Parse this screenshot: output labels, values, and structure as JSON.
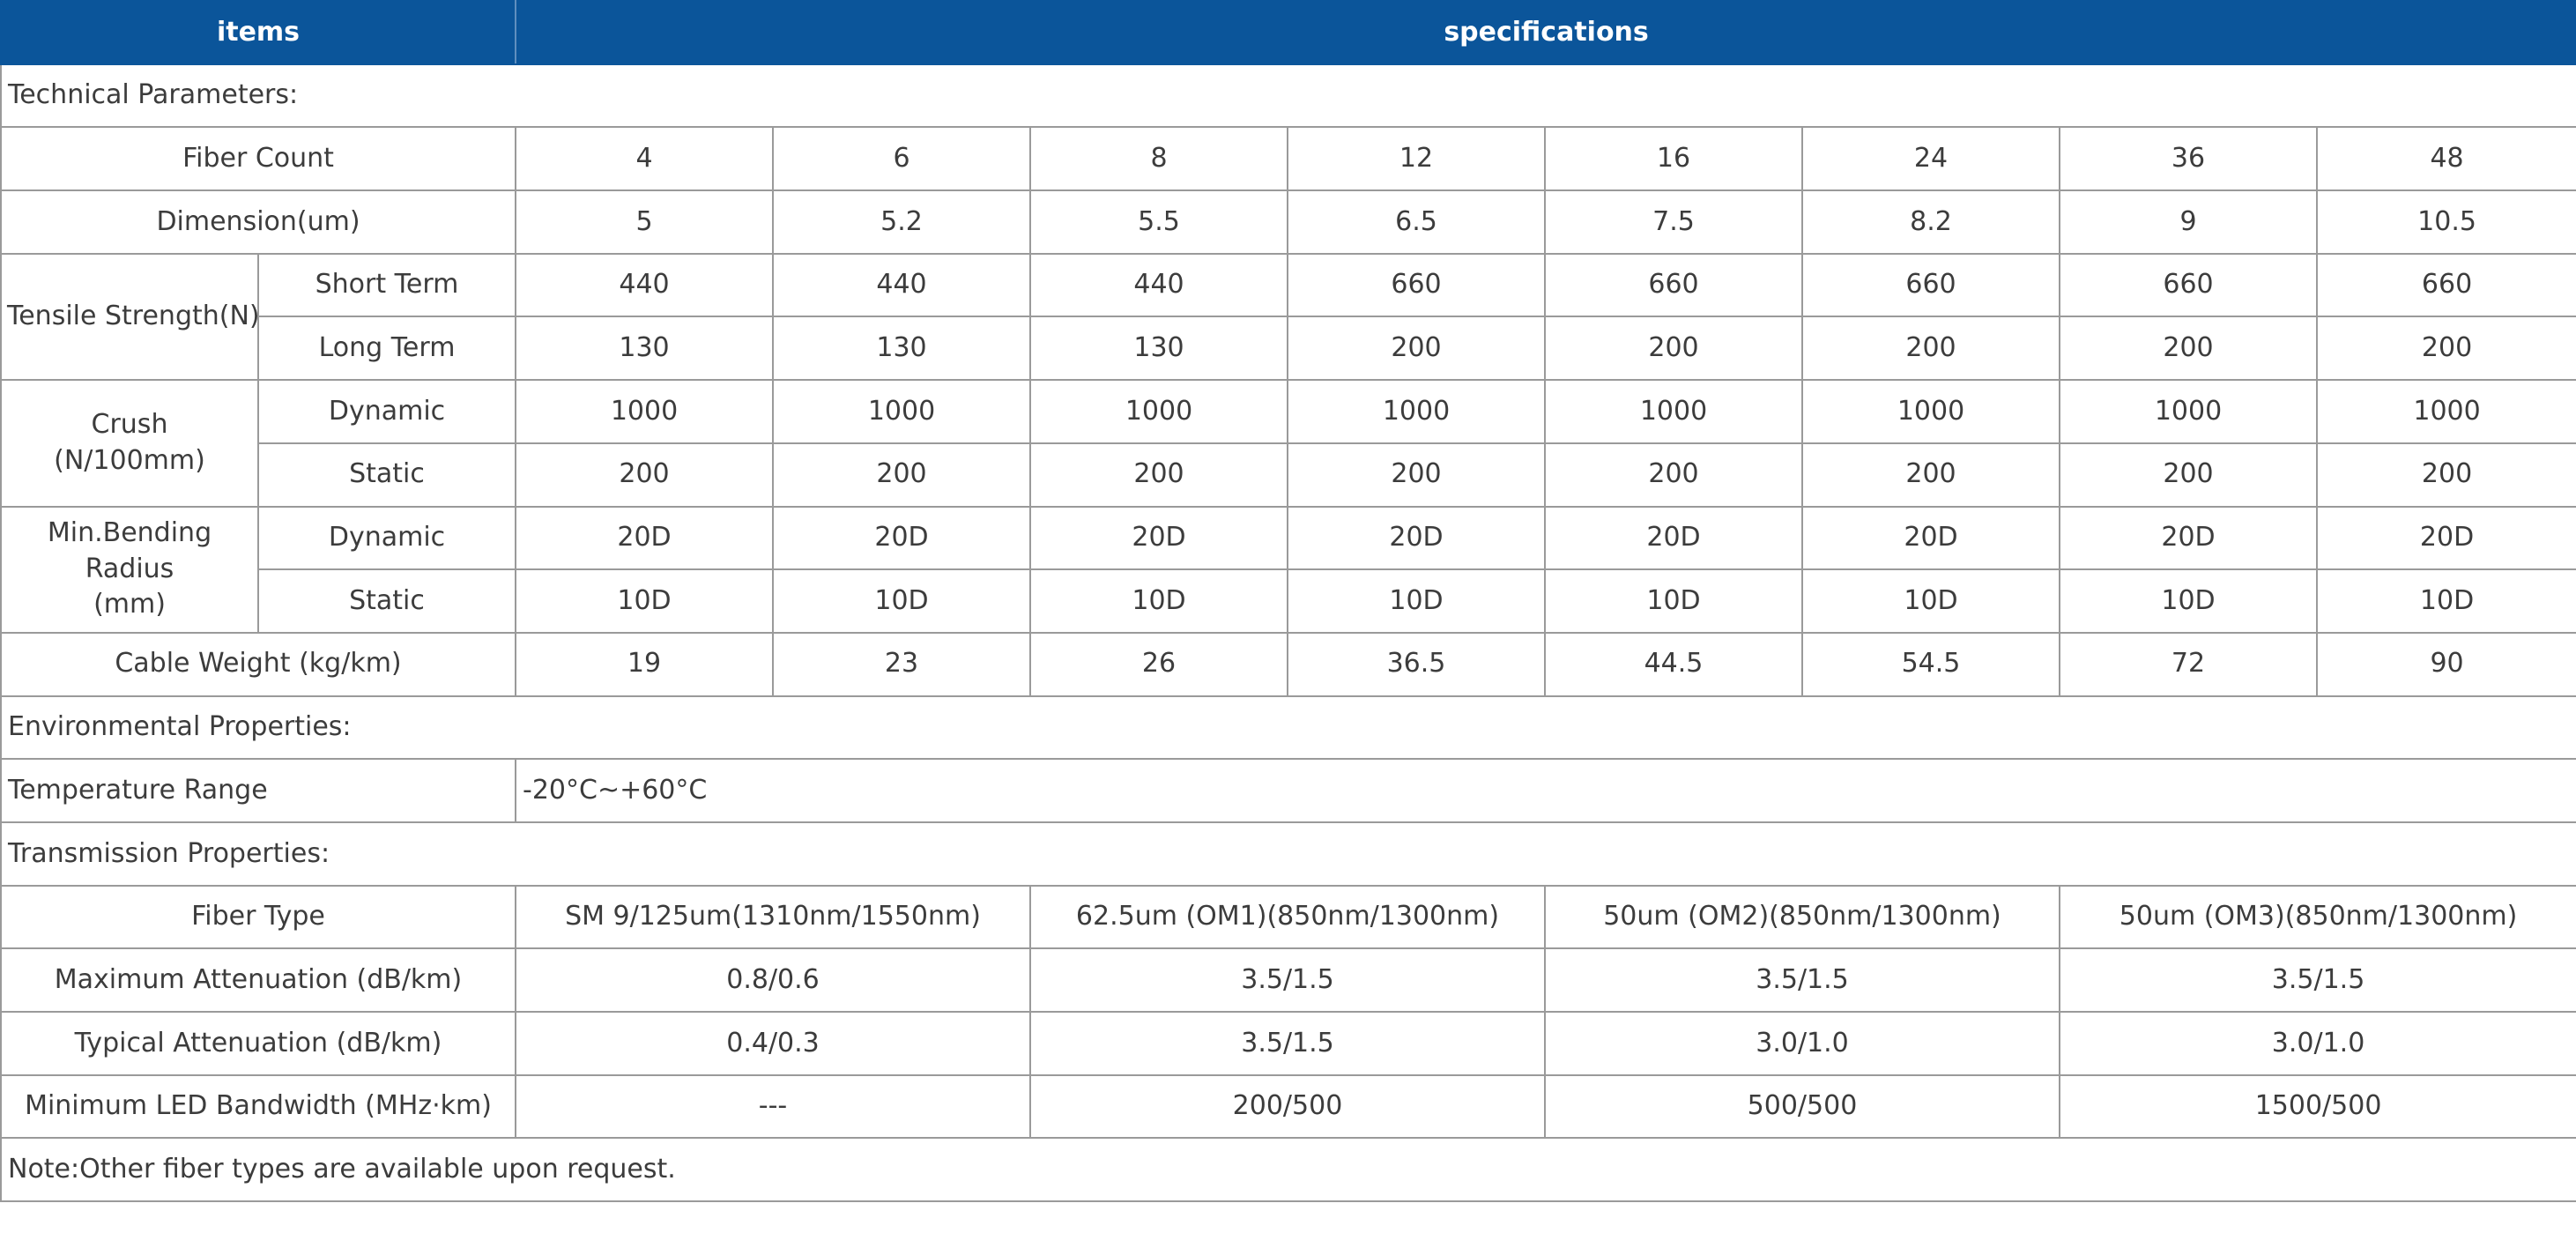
{
  "header": {
    "items": "items",
    "specifications": "specifications"
  },
  "fiber_counts": [
    "4",
    "6",
    "8",
    "12",
    "16",
    "24",
    "36",
    "48"
  ],
  "sections": {
    "technical": "Technical Parameters:",
    "environmental": "Environmental Properties:",
    "transmission": "Transmission Properties:"
  },
  "technical": {
    "fiber_count_label": "Fiber Count",
    "dimension": {
      "label": "Dimension(um)",
      "values": [
        "5",
        "5.2",
        "5.5",
        "6.5",
        "7.5",
        "8.2",
        "9",
        "10.5"
      ]
    },
    "tensile": {
      "label": "Tensile Strength(N)",
      "short": {
        "label": "Short Term",
        "values": [
          "440",
          "440",
          "440",
          "660",
          "660",
          "660",
          "660",
          "660"
        ]
      },
      "long": {
        "label": "Long Term",
        "values": [
          "130",
          "130",
          "130",
          "200",
          "200",
          "200",
          "200",
          "200"
        ]
      }
    },
    "crush": {
      "label_line1": "Crush",
      "label_line2": "(N/100mm)",
      "dynamic": {
        "label": "Dynamic",
        "values": [
          "1000",
          "1000",
          "1000",
          "1000",
          "1000",
          "1000",
          "1000",
          "1000"
        ]
      },
      "static": {
        "label": "Static",
        "values": [
          "200",
          "200",
          "200",
          "200",
          "200",
          "200",
          "200",
          "200"
        ]
      }
    },
    "bending": {
      "label_line1": "Min.Bending Radius",
      "label_line2": "(mm)",
      "dynamic": {
        "label": "Dynamic",
        "values": [
          "20D",
          "20D",
          "20D",
          "20D",
          "20D",
          "20D",
          "20D",
          "20D"
        ]
      },
      "static": {
        "label": "Static",
        "values": [
          "10D",
          "10D",
          "10D",
          "10D",
          "10D",
          "10D",
          "10D",
          "10D"
        ]
      }
    },
    "weight": {
      "label": "Cable Weight (kg/km)",
      "values": [
        "19",
        "23",
        "26",
        "36.5",
        "44.5",
        "54.5",
        "72",
        "90"
      ]
    }
  },
  "environmental": {
    "temp_label": "Temperature Range",
    "temp_value": "-20°C~+60°C"
  },
  "transmission": {
    "fiber_type": {
      "label": "Fiber Type",
      "values": [
        "SM 9/125um(1310nm/1550nm)",
        "62.5um (OM1)(850nm/1300nm)",
        "50um (OM2)(850nm/1300nm)",
        "50um (OM3)(850nm/1300nm)"
      ]
    },
    "max_att": {
      "label": "Maximum Attenuation (dB/km)",
      "values": [
        "0.8/0.6",
        "3.5/1.5",
        "3.5/1.5",
        "3.5/1.5"
      ]
    },
    "typ_att": {
      "label": "Typical Attenuation (dB/km)",
      "values": [
        "0.4/0.3",
        "3.5/1.5",
        "3.0/1.0",
        "3.0/1.0"
      ]
    },
    "bandwidth": {
      "label": "Minimum LED Bandwidth (MHz·km)",
      "values": [
        "---",
        "200/500",
        "500/500",
        "1500/500"
      ]
    }
  },
  "note": "Note:Other fiber types are available upon request."
}
